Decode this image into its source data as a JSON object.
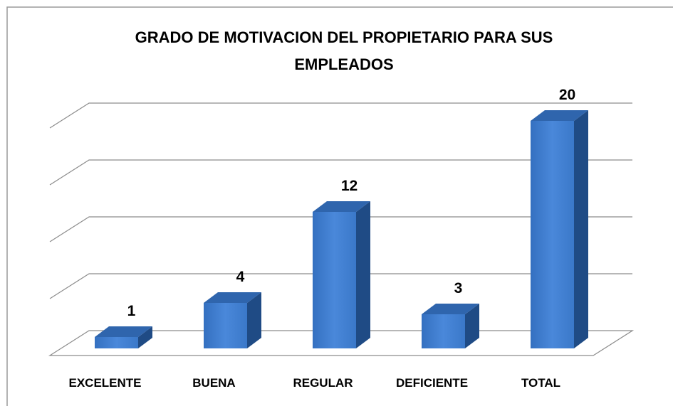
{
  "chart_data": {
    "type": "bar3d",
    "title": "GRADO DE MOTIVACION DEL PROPIETARIO PARA SUS EMPLEADOS",
    "categories": [
      "EXCELENTE",
      "BUENA",
      "REGULAR",
      "DEFICIENTE",
      "TOTAL"
    ],
    "values": [
      1,
      4,
      12,
      3,
      20
    ],
    "color": "#3a78c9",
    "ylim": [
      0,
      20
    ],
    "yticks": [
      0,
      5,
      10,
      15,
      20
    ],
    "grid": true
  }
}
